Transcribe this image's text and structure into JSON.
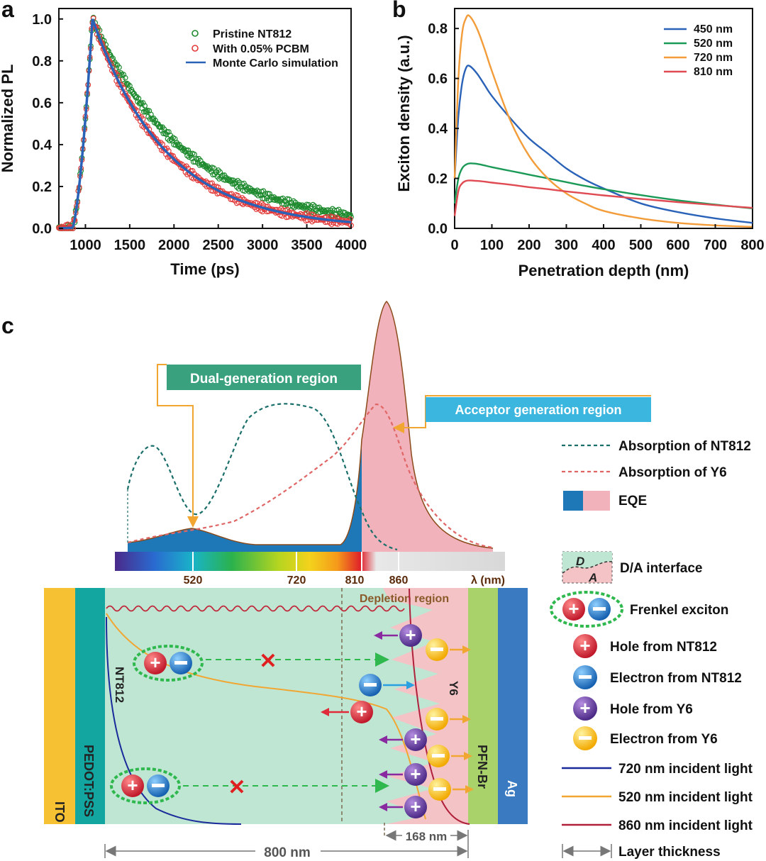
{
  "panel_labels": {
    "a": "a",
    "b": "b",
    "c": "c"
  },
  "chart_data": [
    {
      "type": "scatter",
      "panel": "a",
      "xlabel": "Time (ps)",
      "ylabel": "Normalized PL",
      "xlim": [
        700,
        4000
      ],
      "ylim": [
        0,
        1.05
      ],
      "xticks": [
        1000,
        1500,
        2000,
        2500,
        3000,
        3500,
        4000
      ],
      "yticks": [
        0.0,
        0.2,
        0.4,
        0.6,
        0.8,
        1.0
      ],
      "series": [
        {
          "name": "Pristine NT812",
          "style": "open-circle",
          "color": "#1e8a2e",
          "rise_ps": 850,
          "peak_ps": 1080,
          "decay_tau_ps": 1050
        },
        {
          "name": "With 0.05% PCBM",
          "style": "open-circle",
          "color": "#e23a3a",
          "rise_ps": 850,
          "peak_ps": 1080,
          "decay_tau_ps": 830
        },
        {
          "name": "Monte Carlo simulation",
          "style": "line",
          "color": "#2a62b8",
          "rise_ps": 850,
          "peak_ps": 1080,
          "decay_tau_ps": 830
        }
      ]
    },
    {
      "type": "line",
      "panel": "b",
      "xlabel": "Penetration depth (nm)",
      "ylabel": "Exciton density (a.u.)",
      "xlim": [
        0,
        800
      ],
      "ylim": [
        0,
        0.88
      ],
      "xticks": [
        0,
        100,
        200,
        300,
        400,
        500,
        600,
        700,
        800
      ],
      "yticks": [
        0.0,
        0.2,
        0.4,
        0.6,
        0.8
      ],
      "series": [
        {
          "name": "450 nm",
          "color": "#2a62b8",
          "x": [
            0,
            10,
            20,
            30,
            40,
            60,
            80,
            100,
            150,
            200,
            250,
            300,
            350,
            400,
            500,
            600,
            700,
            800
          ],
          "y": [
            0.2,
            0.45,
            0.58,
            0.64,
            0.65,
            0.62,
            0.575,
            0.53,
            0.44,
            0.36,
            0.3,
            0.24,
            0.195,
            0.16,
            0.1,
            0.065,
            0.04,
            0.022
          ]
        },
        {
          "name": "520 nm",
          "color": "#1a9a56",
          "x": [
            0,
            10,
            20,
            30,
            40,
            60,
            80,
            100,
            150,
            200,
            250,
            300,
            350,
            400,
            500,
            600,
            700,
            800
          ],
          "y": [
            0.1,
            0.2,
            0.24,
            0.255,
            0.26,
            0.258,
            0.252,
            0.245,
            0.23,
            0.215,
            0.2,
            0.185,
            0.17,
            0.157,
            0.133,
            0.112,
            0.095,
            0.08
          ]
        },
        {
          "name": "720 nm",
          "color": "#f39c3a",
          "x": [
            0,
            10,
            20,
            30,
            40,
            60,
            80,
            100,
            150,
            200,
            250,
            300,
            350,
            400,
            500,
            600,
            700,
            800
          ],
          "y": [
            0.2,
            0.6,
            0.78,
            0.84,
            0.85,
            0.8,
            0.72,
            0.63,
            0.43,
            0.29,
            0.2,
            0.14,
            0.1,
            0.07,
            0.04,
            0.022,
            0.012,
            0.006
          ]
        },
        {
          "name": "810 nm",
          "color": "#e04a52",
          "x": [
            0,
            10,
            20,
            30,
            40,
            60,
            80,
            100,
            150,
            200,
            250,
            300,
            350,
            400,
            500,
            600,
            700,
            800
          ],
          "y": [
            0.05,
            0.15,
            0.18,
            0.19,
            0.192,
            0.19,
            0.187,
            0.183,
            0.175,
            0.165,
            0.157,
            0.148,
            0.14,
            0.132,
            0.118,
            0.105,
            0.093,
            0.082
          ]
        }
      ]
    }
  ],
  "panel_c": {
    "dual_label": "Dual-generation region",
    "acceptor_label": "Acceptor generation region",
    "spectrum_ticks": [
      "520",
      "720",
      "810",
      "860",
      "λ (nm)"
    ],
    "depletion_label": "Depletion region",
    "layers": {
      "ito": "ITO",
      "pedot": "PEDOT:PSS",
      "nt812": "NT812",
      "y6": "Y6",
      "pfn": "PFN-Br",
      "ag": "Ag"
    },
    "dim_168": "168 nm",
    "dim_800": "800 nm",
    "legend": {
      "abs_nt812": "Absorption of NT812",
      "abs_y6": "Absorption of Y6",
      "eqe": "EQE",
      "da_interface": "D/A interface",
      "da_d": "D",
      "da_a": "A",
      "frenkel": "Frenkel exciton",
      "hole_nt812": "Hole from NT812",
      "electron_nt812": "Electron from NT812",
      "hole_y6": "Hole from Y6",
      "electron_y6": "Electron from Y6",
      "light720": "720 nm incident light",
      "light520": "520 nm incident light",
      "light860": "860 nm incident light",
      "thickness": "Layer thickness"
    },
    "colors": {
      "nt812_abs": "#1a6f6a",
      "y6_abs": "#e06666",
      "eqe_blue": "#1e78b8",
      "eqe_pink": "#f2b2bb",
      "active": "#bfe6d3"
    }
  }
}
